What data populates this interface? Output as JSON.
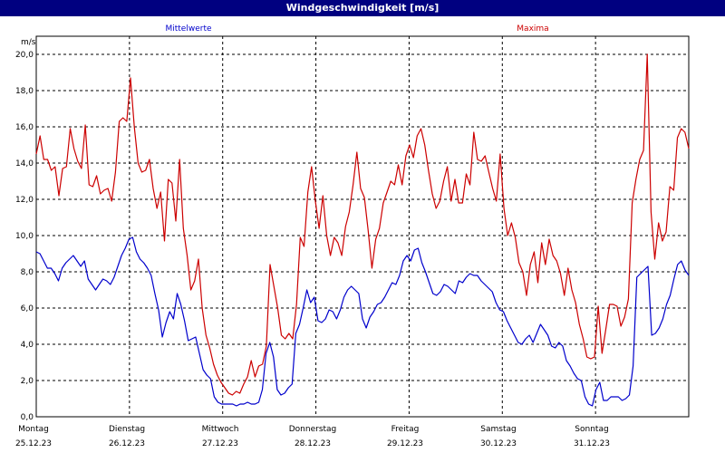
{
  "window": {
    "title": "Windgeschwindigkeit [m/s]"
  },
  "chart_data": {
    "type": "line",
    "title": "Windgeschwindigkeit [m/s]",
    "ylabel": "m/s",
    "ylim": [
      0,
      21
    ],
    "yticks": [
      0,
      2,
      4,
      6,
      8,
      10,
      12,
      14,
      16,
      18,
      20
    ],
    "ytick_labels": [
      "0,0",
      "2,0",
      "4,0",
      "6,0",
      "8,0",
      "10,0",
      "12,0",
      "14,0",
      "16,0",
      "18,0",
      "20,0"
    ],
    "grid": true,
    "xlim": [
      0,
      7
    ],
    "days": [
      {
        "name": "Montag",
        "date": "25.12.23"
      },
      {
        "name": "Dienstag",
        "date": "26.12.23"
      },
      {
        "name": "Mittwoch",
        "date": "27.12.23"
      },
      {
        "name": "Donnerstag",
        "date": "28.12.23"
      },
      {
        "name": "Freitag",
        "date": "29.12.23"
      },
      {
        "name": "Samstag",
        "date": "30.12.23"
      },
      {
        "name": "Sonntag",
        "date": "31.12.23"
      }
    ],
    "series": [
      {
        "name": "Mittelwerte",
        "color": "#0000cc",
        "values": [
          9.1,
          9.0,
          8.6,
          8.2,
          8.2,
          7.9,
          7.5,
          8.2,
          8.5,
          8.7,
          8.9,
          8.6,
          8.3,
          8.6,
          7.6,
          7.3,
          7.0,
          7.3,
          7.6,
          7.5,
          7.3,
          7.7,
          8.3,
          8.9,
          9.3,
          9.8,
          9.9,
          9.1,
          8.7,
          8.5,
          8.2,
          7.8,
          6.8,
          5.9,
          4.4,
          5.2,
          5.8,
          5.4,
          6.8,
          6.2,
          5.3,
          4.2,
          4.3,
          4.4,
          3.5,
          2.6,
          2.3,
          2.1,
          1.1,
          0.8,
          0.7,
          0.7,
          0.7,
          0.7,
          0.6,
          0.7,
          0.7,
          0.8,
          0.7,
          0.7,
          0.8,
          1.5,
          3.5,
          4.1,
          3.3,
          1.5,
          1.2,
          1.3,
          1.6,
          1.8,
          4.6,
          5.1,
          6.0,
          7.0,
          6.3,
          6.6,
          5.3,
          5.2,
          5.4,
          5.9,
          5.8,
          5.4,
          5.9,
          6.6,
          7.0,
          7.2,
          7.0,
          6.8,
          5.4,
          4.9,
          5.5,
          5.8,
          6.2,
          6.3,
          6.6,
          7.0,
          7.4,
          7.3,
          7.8,
          8.6,
          8.9,
          8.6,
          9.2,
          9.3,
          8.5,
          8.0,
          7.4,
          6.8,
          6.7,
          6.9,
          7.3,
          7.2,
          7.0,
          6.8,
          7.5,
          7.4,
          7.7,
          7.9,
          7.8,
          7.8,
          7.5,
          7.3,
          7.1,
          6.9,
          6.3,
          5.9,
          5.8,
          5.3,
          4.9,
          4.5,
          4.1,
          4.0,
          4.3,
          4.5,
          4.1,
          4.6,
          5.1,
          4.8,
          4.5,
          3.9,
          3.8,
          4.1,
          3.9,
          3.1,
          2.8,
          2.4,
          2.1,
          2.0,
          1.1,
          0.7,
          0.6,
          1.5,
          1.9,
          0.9,
          0.9,
          1.1,
          1.1,
          1.1,
          0.9,
          1.0,
          1.2,
          2.8,
          7.7,
          7.9,
          8.1,
          8.3,
          4.5,
          4.6,
          4.9,
          5.4,
          6.2,
          6.7,
          7.6,
          8.4,
          8.6,
          8.1,
          7.8
        ]
      },
      {
        "name": "Maxima",
        "color": "#cc0000",
        "values": [
          14.5,
          15.5,
          14.2,
          14.2,
          13.6,
          13.8,
          12.2,
          13.7,
          13.8,
          15.9,
          14.8,
          14.1,
          13.7,
          16.1,
          12.8,
          12.7,
          13.3,
          12.3,
          12.5,
          12.6,
          11.9,
          13.5,
          16.3,
          16.5,
          16.3,
          18.7,
          16.0,
          14.0,
          13.5,
          13.6,
          14.2,
          12.6,
          11.5,
          12.4,
          9.7,
          13.1,
          12.9,
          10.8,
          14.2,
          10.4,
          8.9,
          7.0,
          7.5,
          8.7,
          6.0,
          4.5,
          3.8,
          2.9,
          2.3,
          1.9,
          1.6,
          1.3,
          1.2,
          1.4,
          1.3,
          1.8,
          2.2,
          3.1,
          2.2,
          2.8,
          2.9,
          3.9,
          8.4,
          7.2,
          6.0,
          4.5,
          4.3,
          4.6,
          4.3,
          6.2,
          9.9,
          9.4,
          12.4,
          13.8,
          11.9,
          10.4,
          12.2,
          10.0,
          8.9,
          9.9,
          9.6,
          8.9,
          10.5,
          11.3,
          12.8,
          14.6,
          12.6,
          12.1,
          10.3,
          8.2,
          9.8,
          10.4,
          11.8,
          12.4,
          13.0,
          12.8,
          13.9,
          12.8,
          14.4,
          15.0,
          14.3,
          15.5,
          15.9,
          15.0,
          13.6,
          12.3,
          11.5,
          11.9,
          13.0,
          13.8,
          11.9,
          13.1,
          11.8,
          11.8,
          13.4,
          12.8,
          15.7,
          14.2,
          14.1,
          14.4,
          13.5,
          12.6,
          11.9,
          14.5,
          11.5,
          10.0,
          10.7,
          9.9,
          8.5,
          8.0,
          6.7,
          8.4,
          9.1,
          7.4,
          9.6,
          8.4,
          9.8,
          8.9,
          8.6,
          7.9,
          6.7,
          8.2,
          7.0,
          6.3,
          5.1,
          4.3,
          3.3,
          3.2,
          3.3,
          6.1,
          3.5,
          4.8,
          6.2,
          6.2,
          6.1,
          5.0,
          5.5,
          6.5,
          11.8,
          13.1,
          14.2,
          14.7,
          20.0,
          11.3,
          8.7,
          10.7,
          9.7,
          10.2,
          12.7,
          12.5,
          15.4,
          15.9,
          15.7,
          14.8
        ]
      }
    ]
  }
}
